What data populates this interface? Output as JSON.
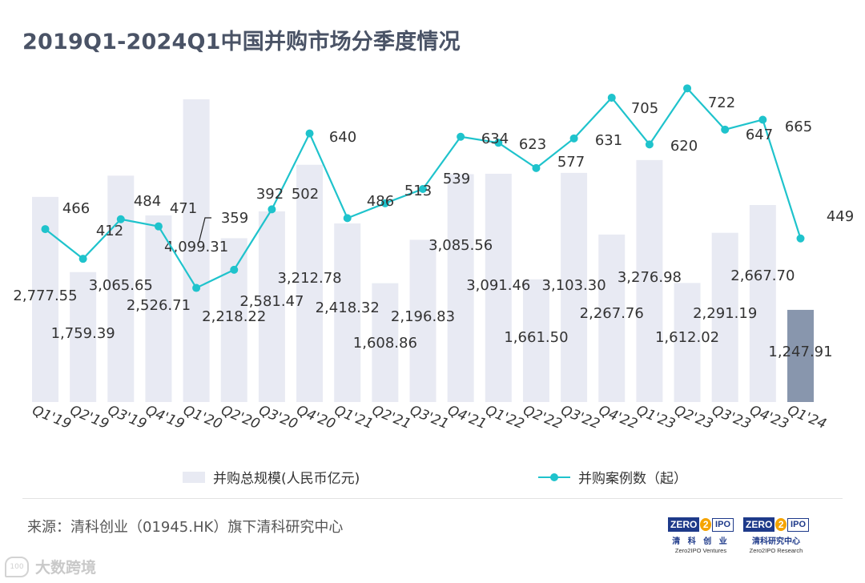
{
  "title": "2019Q1-2024Q1中国并购市场分季度情况",
  "chart_data": {
    "type": "bar+line",
    "categories": [
      "Q1'19",
      "Q2'19",
      "Q3'19",
      "Q4'19",
      "Q1'20",
      "Q2'20",
      "Q3'20",
      "Q4'20",
      "Q1'21",
      "Q2'21",
      "Q3'21",
      "Q4'21",
      "Q1'22",
      "Q2'22",
      "Q3'22",
      "Q4'22",
      "Q1'23",
      "Q2'23",
      "Q3'23",
      "Q4'23",
      "Q1'24"
    ],
    "series": [
      {
        "name": "并购总规模(人民币亿元)",
        "type": "bar",
        "values": [
          2777.55,
          1759.39,
          3065.65,
          2526.71,
          4099.31,
          2218.22,
          2581.47,
          3212.78,
          2418.32,
          1608.86,
          2196.83,
          3085.56,
          3091.46,
          1661.5,
          3103.3,
          2267.76,
          3276.98,
          1612.02,
          2291.19,
          2667.7,
          1247.91
        ],
        "labels": [
          "2,777.55",
          "1,759.39",
          "3,065.65",
          "2,526.71",
          "4,099.31",
          "2,218.22",
          "2,581.47",
          "3,212.78",
          "2,418.32",
          "1,608.86",
          "2,196.83",
          "3,085.56",
          "3,091.46",
          "1,661.50",
          "3,103.30",
          "2,267.76",
          "3,276.98",
          "1,612.02",
          "2,291.19",
          "2,667.70",
          "1,247.91"
        ],
        "color": "#e8eaf3",
        "highlight_color": "#8896ad"
      },
      {
        "name": "并购案例数（起）",
        "type": "line",
        "values": [
          466,
          412,
          484,
          471,
          359,
          392,
          502,
          640,
          486,
          513,
          539,
          634,
          623,
          577,
          631,
          705,
          620,
          722,
          647,
          665,
          449
        ],
        "labels": [
          "466",
          "412",
          "484",
          "471",
          "359",
          "392",
          "502",
          "640",
          "486",
          "513",
          "539",
          "634",
          "623",
          "577",
          "631",
          "705",
          "620",
          "722",
          "647",
          "665",
          "449"
        ],
        "color": "#1fc3cc"
      }
    ],
    "legend": [
      "并购总规模(人民币亿元)",
      "并购案例数（起）"
    ],
    "legend_position": "bottom",
    "grid": false
  },
  "source": "来源：清科创业（01945.HK）旗下清科研究中心",
  "logos": [
    {
      "badge": [
        "ZERO",
        "2",
        "IPO"
      ],
      "cn": "清 科 创 业",
      "en": "Zero2IPO Ventures"
    },
    {
      "badge": [
        "ZERO",
        "2",
        "IPO"
      ],
      "cn": "清科研究中心",
      "en": "Zero2IPO Research"
    }
  ],
  "watermark": "大数跨境",
  "watermark_icon": "100"
}
